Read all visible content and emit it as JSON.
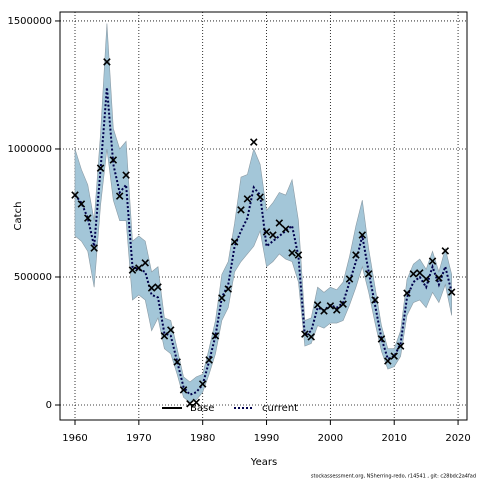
{
  "chart_data": {
    "type": "line",
    "x_label": "Years",
    "y_label": "Catch",
    "footer": "stockassessment.org, NSherring-redo, r14541 , git: c28bdc2a4fad",
    "x": [
      1960,
      1961,
      1962,
      1963,
      1964,
      1965,
      1966,
      1967,
      1968,
      1969,
      1970,
      1971,
      1972,
      1973,
      1974,
      1975,
      1976,
      1977,
      1978,
      1979,
      1980,
      1981,
      1982,
      1983,
      1984,
      1985,
      1986,
      1987,
      1988,
      1989,
      1990,
      1991,
      1992,
      1993,
      1994,
      1995,
      1996,
      1997,
      1998,
      1999,
      2000,
      2001,
      2002,
      2003,
      2004,
      2005,
      2006,
      2007,
      2008,
      2009,
      2010,
      2011,
      2012,
      2013,
      2014,
      2015,
      2016,
      2017,
      2018,
      2019
    ],
    "xlim": [
      1957.65,
      2021.4
    ],
    "xticks": [
      1960,
      1970,
      1980,
      1990,
      2000,
      2010,
      2020
    ],
    "ylim": [
      -58600,
      1535000
    ],
    "yticks": [
      0,
      500000,
      1000000,
      1500000
    ],
    "grid": true,
    "series": [
      {
        "name": "current",
        "color": "#00004d",
        "band_color": "#a3c6d8",
        "values": [
          820000,
          790000,
          730000,
          620000,
          920000,
          1240000,
          940000,
          830000,
          860000,
          540000,
          530000,
          520000,
          430000,
          420000,
          280000,
          270000,
          170000,
          70000,
          40000,
          50000,
          80000,
          170000,
          270000,
          420000,
          470000,
          620000,
          680000,
          730000,
          850000,
          820000,
          620000,
          640000,
          660000,
          680000,
          700000,
          580000,
          270000,
          290000,
          380000,
          370000,
          390000,
          380000,
          400000,
          480000,
          560000,
          660000,
          520000,
          390000,
          260000,
          180000,
          190000,
          240000,
          420000,
          480000,
          500000,
          460000,
          540000,
          470000,
          540000,
          440000
        ],
        "upper": [
          1000000,
          920000,
          860000,
          720000,
          1060000,
          1490000,
          1080000,
          1000000,
          1030000,
          640000,
          660000,
          640000,
          520000,
          540000,
          340000,
          330000,
          220000,
          110000,
          90000,
          110000,
          120000,
          220000,
          330000,
          510000,
          560000,
          710000,
          890000,
          900000,
          1000000,
          940000,
          760000,
          790000,
          830000,
          820000,
          880000,
          720000,
          330000,
          340000,
          460000,
          440000,
          460000,
          450000,
          480000,
          580000,
          700000,
          800000,
          610000,
          460000,
          310000,
          220000,
          220000,
          290000,
          490000,
          550000,
          570000,
          530000,
          600000,
          520000,
          610000,
          510000
        ],
        "lower": [
          660000,
          640000,
          600000,
          460000,
          780000,
          1000000,
          800000,
          720000,
          720000,
          410000,
          430000,
          410000,
          290000,
          340000,
          220000,
          200000,
          120000,
          30000,
          10000,
          20000,
          50000,
          120000,
          200000,
          330000,
          380000,
          520000,
          560000,
          590000,
          620000,
          680000,
          540000,
          560000,
          590000,
          570000,
          560000,
          480000,
          230000,
          240000,
          310000,
          300000,
          320000,
          320000,
          330000,
          390000,
          460000,
          540000,
          440000,
          320000,
          210000,
          140000,
          150000,
          190000,
          350000,
          400000,
          410000,
          380000,
          440000,
          400000,
          470000,
          350000
        ]
      }
    ],
    "observed": {
      "color": "#000000",
      "values": [
        820000,
        785000,
        730000,
        613000,
        925000,
        1340000,
        957000,
        816000,
        898000,
        527000,
        535000,
        555000,
        457000,
        461000,
        270000,
        293000,
        168000,
        59000,
        5000,
        10000,
        82000,
        176000,
        270000,
        418000,
        453000,
        637000,
        762000,
        805000,
        1027000,
        812000,
        676000,
        664000,
        711000,
        687000,
        594000,
        586000,
        277000,
        266000,
        391000,
        367000,
        387000,
        371000,
        394000,
        492000,
        586000,
        664000,
        512000,
        410000,
        258000,
        172000,
        191000,
        230000,
        437000,
        512000,
        516000,
        492000,
        562000,
        496000,
        602000,
        441000
      ]
    },
    "legend_extra": [
      {
        "name": "Base",
        "color": "#000000"
      }
    ]
  }
}
